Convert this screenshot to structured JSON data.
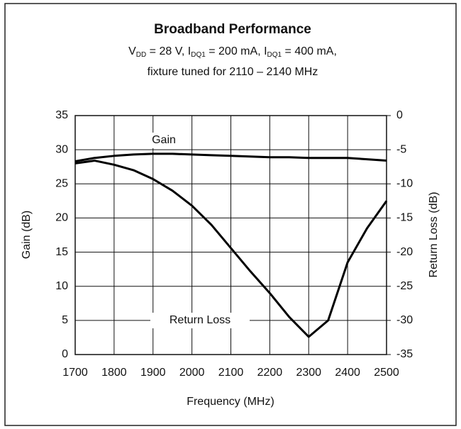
{
  "chart_data": {
    "type": "line",
    "title": "Broadband Performance",
    "subtitle_parts": [
      {
        "text": "V"
      },
      {
        "text": "DD",
        "sub": true
      },
      {
        "text": " = 28 V, I"
      },
      {
        "text": "DQ1",
        "sub": true
      },
      {
        "text": " = 200 mA, I"
      },
      {
        "text": "DQ1",
        "sub": true
      },
      {
        "text": " = 400 mA,"
      }
    ],
    "subtitle2": "fixture tuned for 2110 – 2140 MHz",
    "xlabel": "Frequency (MHz)",
    "ylabel": "Gain (dB)",
    "y2label": "Return Loss (dB)",
    "x": [
      1700,
      1750,
      1800,
      1850,
      1900,
      1950,
      2000,
      2050,
      2100,
      2150,
      2200,
      2250,
      2300,
      2350,
      2400,
      2450,
      2500
    ],
    "series": [
      {
        "name": "Gain",
        "color": "#000000",
        "values": [
          28.3,
          28.8,
          29.1,
          29.3,
          29.4,
          29.4,
          29.3,
          29.2,
          29.1,
          29.0,
          28.9,
          28.9,
          28.8,
          28.8,
          28.8,
          28.6,
          28.4
        ]
      },
      {
        "name": "Return Loss",
        "color": "#000000",
        "axis": "y2",
        "values": [
          -7.0,
          -6.6,
          -7.2,
          -8.0,
          -9.3,
          -11.0,
          -13.2,
          -16.0,
          -19.4,
          -22.8,
          -26.0,
          -29.5,
          -32.4,
          -30.0,
          -21.5,
          -16.5,
          -12.5
        ]
      }
    ],
    "xlim": [
      1700,
      2500
    ],
    "xticks": [
      1700,
      1800,
      1900,
      2000,
      2100,
      2200,
      2300,
      2400,
      2500
    ],
    "ylim": [
      0,
      35
    ],
    "yticks": [
      0,
      5,
      10,
      15,
      20,
      25,
      30,
      35
    ],
    "y2lim": [
      -35,
      0
    ],
    "y2ticks": [
      -35,
      -30,
      -25,
      -20,
      -15,
      -10,
      -5,
      0
    ],
    "grid": true
  }
}
